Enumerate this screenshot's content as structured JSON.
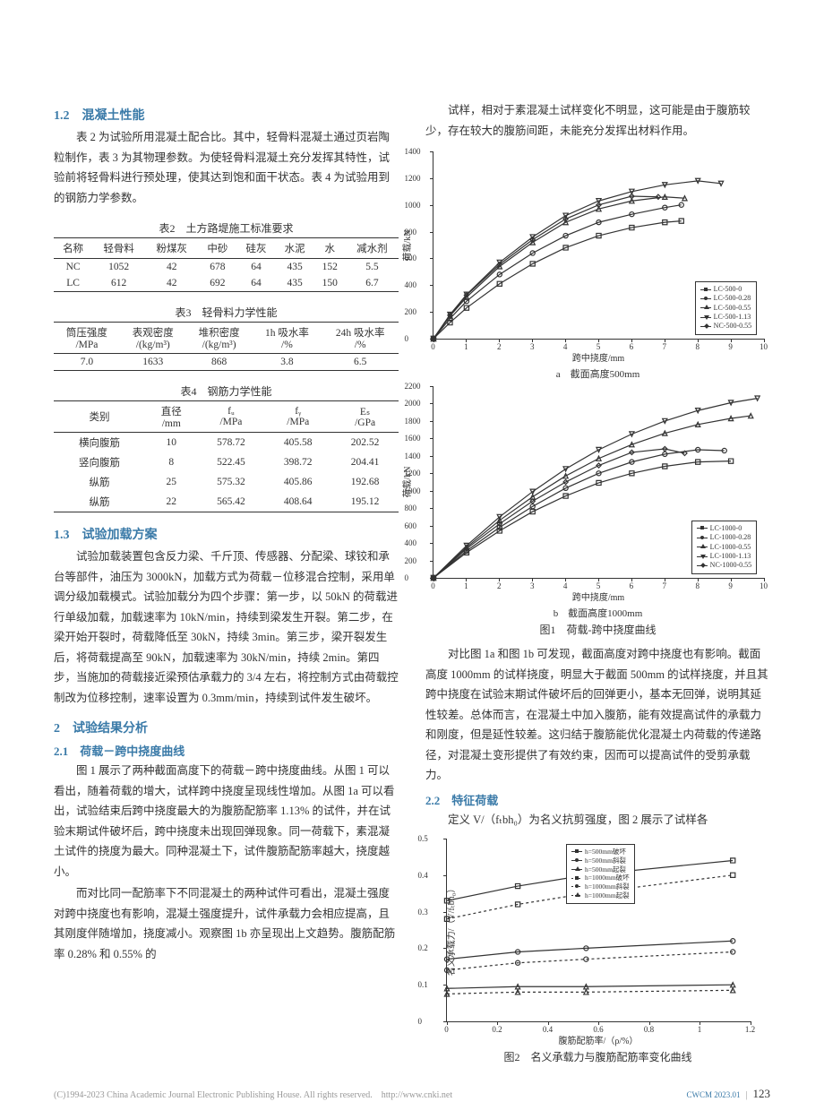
{
  "left": {
    "sec12_title": "1.2　混凝土性能",
    "p1": "表 2 为试验所用混凝土配合比。其中，轻骨料混凝土通过页岩陶粒制作，表 3 为其物理参数。为使轻骨料混凝土充分发挥其特性，试验前将轻骨料进行预处理，使其达到饱和面干状态。表 4 为试验用到的钢筋力学参数。",
    "t2_title": "表2　土方路堤施工标准要求",
    "t2_headers": [
      "名称",
      "轻骨料",
      "粉煤灰",
      "中砂",
      "硅灰",
      "水泥",
      "水",
      "减水剂"
    ],
    "t2_rows": [
      [
        "NC",
        "1052",
        "42",
        "678",
        "64",
        "435",
        "152",
        "5.5"
      ],
      [
        "LC",
        "612",
        "42",
        "692",
        "64",
        "435",
        "150",
        "6.7"
      ]
    ],
    "t3_title": "表3　轻骨料力学性能",
    "t3_headers": [
      "筒压强度\n/MPa",
      "表观密度\n/(kg/m³)",
      "堆积密度\n/(kg/m³)",
      "1h 吸水率\n/%",
      "24h 吸水率\n/%"
    ],
    "t3_rows": [
      [
        "7.0",
        "1633",
        "868",
        "3.8",
        "6.5"
      ]
    ],
    "t4_title": "表4　钢筋力学性能",
    "t4_headers": [
      "类别",
      "直径\n/mm",
      "fᵤ\n/MPa",
      "fᵧ\n/MPa",
      "Eₛ\n/GPa"
    ],
    "t4_rows": [
      [
        "横向腹筋",
        "10",
        "578.72",
        "405.58",
        "202.52"
      ],
      [
        "竖向腹筋",
        "8",
        "522.45",
        "398.72",
        "204.41"
      ],
      [
        "纵筋",
        "25",
        "575.32",
        "405.86",
        "192.68"
      ],
      [
        "纵筋",
        "22",
        "565.42",
        "408.64",
        "195.12"
      ]
    ],
    "sec13_title": "1.3　试验加载方案",
    "p2": "试验加载装置包含反力梁、千斤顶、传感器、分配梁、球铰和承台等部件，油压为 3000kN，加载方式为荷载－位移混合控制，采用单调分级加载模式。试验加载分为四个步骤：第一步，以 50kN 的荷载进行单级加载，加载速率为 10kN/min，持续到梁发生开裂。第二步，在梁开始开裂时，荷载降低至 30kN，持续 3min。第三步，梁开裂发生后，将荷载提高至 90kN，加载速率为 30kN/min，持续 2min。第四步，当施加的荷载接近梁预估承载力的 3/4 左右，将控制方式由荷载控制改为位移控制，速率设置为 0.3mm/min，持续到试件发生破坏。",
    "sec2_title": "2　试验结果分析",
    "sec21_title": "2.1　荷载－跨中挠度曲线",
    "p3": "图 1 展示了两种截面高度下的荷载－跨中挠度曲线。从图 1 可以看出，随着荷载的增大，试样跨中挠度呈现线性增加。从图 1a 可以看出，试验结束后跨中挠度最大的为腹筋配筋率 1.13% 的试件，并在试验末期试件破坏后，跨中挠度未出现回弹现象。同一荷载下，素混凝土试件的挠度为最大。同种混凝土下，试件腹筋配筋率越大，挠度越小。",
    "p4": "而对比同一配筋率下不同混凝土的两种试件可看出，混凝土强度对跨中挠度也有影响，混凝土强度提升，试件承载力会相应提高，且其刚度伴随增加，挠度减小。观察图 1b 亦呈现出上文趋势。腹筋配筋率 0.28% 和 0.55% 的"
  },
  "right": {
    "p1": "试样，相对于素混凝土试样变化不明显，这可能是由于腹筋较少，存在较大的腹筋间距，未能充分发挥出材料作用。",
    "fig1_sub_a": "a　截面高度500mm",
    "fig1_sub_b": "b　截面高度1000mm",
    "fig1_title": "图1　荷载-跨中挠度曲线",
    "chart_a": {
      "xlabel": "跨中挠度/mm",
      "ylabel": "荷载/kN",
      "xlim": [
        0,
        10
      ],
      "ylim": [
        0,
        1400
      ],
      "xticks": [
        0,
        1,
        2,
        3,
        4,
        5,
        6,
        7,
        8,
        9,
        10
      ],
      "yticks": [
        0,
        200,
        400,
        600,
        800,
        1000,
        1200,
        1400
      ],
      "legend": [
        "LC-500-0",
        "LC-500-0.28",
        "LC-500-0.55",
        "LC-500-1.13",
        "NC-500-0.55"
      ],
      "markers": [
        "sq",
        "ci",
        "tr",
        "td",
        "di"
      ],
      "series": [
        [
          [
            0,
            0
          ],
          [
            0.5,
            120
          ],
          [
            1,
            230
          ],
          [
            2,
            410
          ],
          [
            3,
            560
          ],
          [
            4,
            680
          ],
          [
            5,
            770
          ],
          [
            6,
            830
          ],
          [
            7,
            870
          ],
          [
            7.5,
            880
          ]
        ],
        [
          [
            0,
            0
          ],
          [
            0.5,
            150
          ],
          [
            1,
            280
          ],
          [
            2,
            480
          ],
          [
            3,
            640
          ],
          [
            4,
            770
          ],
          [
            5,
            870
          ],
          [
            6,
            930
          ],
          [
            7,
            980
          ],
          [
            7.5,
            1000
          ]
        ],
        [
          [
            0,
            0
          ],
          [
            0.5,
            170
          ],
          [
            1,
            310
          ],
          [
            2,
            540
          ],
          [
            3,
            720
          ],
          [
            4,
            870
          ],
          [
            5,
            970
          ],
          [
            6,
            1030
          ],
          [
            7,
            1060
          ],
          [
            7.6,
            1050
          ]
        ],
        [
          [
            0,
            0
          ],
          [
            0.5,
            180
          ],
          [
            1,
            330
          ],
          [
            2,
            570
          ],
          [
            3,
            760
          ],
          [
            4,
            920
          ],
          [
            5,
            1030
          ],
          [
            6,
            1100
          ],
          [
            7,
            1150
          ],
          [
            8,
            1180
          ],
          [
            8.7,
            1160
          ]
        ],
        [
          [
            0,
            0
          ],
          [
            0.5,
            175
          ],
          [
            1,
            325
          ],
          [
            2,
            555
          ],
          [
            3,
            740
          ],
          [
            4,
            895
          ],
          [
            5,
            1000
          ],
          [
            6,
            1065
          ],
          [
            6.8,
            1060
          ]
        ]
      ]
    },
    "chart_b": {
      "xlabel": "跨中挠度/mm",
      "ylabel": "荷载/kN",
      "xlim": [
        0,
        10
      ],
      "ylim": [
        0,
        2200
      ],
      "xticks": [
        0,
        1,
        2,
        3,
        4,
        5,
        6,
        7,
        8,
        9,
        10
      ],
      "yticks": [
        0,
        200,
        400,
        600,
        800,
        1000,
        1200,
        1400,
        1600,
        1800,
        2000,
        2200
      ],
      "legend": [
        "LC-1000-0",
        "LC-1000-0.28",
        "LC-1000-0.55",
        "LC-1000-1.13",
        "NC-1000-0.55"
      ],
      "markers": [
        "sq",
        "ci",
        "tr",
        "td",
        "di"
      ],
      "series": [
        [
          [
            0,
            0
          ],
          [
            1,
            290
          ],
          [
            2,
            540
          ],
          [
            3,
            760
          ],
          [
            4,
            940
          ],
          [
            5,
            1090
          ],
          [
            6,
            1200
          ],
          [
            7,
            1280
          ],
          [
            8,
            1330
          ],
          [
            9,
            1340
          ]
        ],
        [
          [
            0,
            0
          ],
          [
            1,
            310
          ],
          [
            2,
            580
          ],
          [
            3,
            820
          ],
          [
            4,
            1030
          ],
          [
            5,
            1200
          ],
          [
            6,
            1330
          ],
          [
            7,
            1420
          ],
          [
            8,
            1470
          ],
          [
            8.8,
            1460
          ]
        ],
        [
          [
            0,
            0
          ],
          [
            1,
            350
          ],
          [
            2,
            660
          ],
          [
            3,
            930
          ],
          [
            4,
            1170
          ],
          [
            5,
            1370
          ],
          [
            6,
            1530
          ],
          [
            7,
            1660
          ],
          [
            8,
            1760
          ],
          [
            9,
            1830
          ],
          [
            9.6,
            1860
          ]
        ],
        [
          [
            0,
            0
          ],
          [
            1,
            370
          ],
          [
            2,
            700
          ],
          [
            3,
            990
          ],
          [
            4,
            1250
          ],
          [
            5,
            1470
          ],
          [
            6,
            1650
          ],
          [
            7,
            1800
          ],
          [
            8,
            1920
          ],
          [
            9,
            2010
          ],
          [
            9.8,
            2060
          ]
        ],
        [
          [
            0,
            0
          ],
          [
            1,
            335
          ],
          [
            2,
            620
          ],
          [
            3,
            880
          ],
          [
            4,
            1100
          ],
          [
            5,
            1290
          ],
          [
            6,
            1440
          ],
          [
            7,
            1480
          ],
          [
            7.6,
            1430
          ]
        ]
      ]
    },
    "p2": "对比图 1a 和图 1b 可发现，截面高度对跨中挠度也有影响。截面高度 1000mm 的试样挠度，明显大于截面 500mm 的试样挠度，并且其跨中挠度在试验末期试件破坏后的回弹更小，基本无回弹，说明其延性较差。总体而言，在混凝土中加入腹筋，能有效提高试件的承载力和刚度，但是延性较差。这归结于腹筋能优化混凝土内荷载的传递路径，对混凝土变形提供了有效约束，因而可以提高试件的受剪承载力。",
    "sec22_title": "2.2　特征荷载",
    "p3": "定义 V/（fₜbh₀）为名义抗剪强度，图 2 展示了试样各",
    "chart_c": {
      "xlabel": "腹筋配筋率/（ρ/%）",
      "ylabel": "名义承载力/（V/fₜbh₀）",
      "xlim": [
        0,
        1.2
      ],
      "ylim": [
        0,
        0.5
      ],
      "xticks": [
        0.0,
        0.2,
        0.4,
        0.6,
        0.8,
        1.0,
        1.2
      ],
      "yticks": [
        0,
        0.1,
        0.2,
        0.3,
        0.4,
        0.5
      ],
      "legend": [
        "h=500mm破坏",
        "h=500mm斜裂",
        "h=500mm起裂",
        "h=1000mm破坏",
        "h=1000mm斜裂",
        "h=1000mm起裂"
      ],
      "markers": [
        "sq",
        "ci",
        "tr",
        "sq",
        "ci",
        "tr"
      ],
      "dash": [
        false,
        false,
        false,
        true,
        true,
        true
      ],
      "series": [
        [
          [
            0,
            0.33
          ],
          [
            0.28,
            0.37
          ],
          [
            0.55,
            0.4
          ],
          [
            1.13,
            0.44
          ]
        ],
        [
          [
            0,
            0.17
          ],
          [
            0.28,
            0.19
          ],
          [
            0.55,
            0.2
          ],
          [
            1.13,
            0.22
          ]
        ],
        [
          [
            0,
            0.09
          ],
          [
            0.28,
            0.095
          ],
          [
            0.55,
            0.095
          ],
          [
            1.13,
            0.1
          ]
        ],
        [
          [
            0,
            0.28
          ],
          [
            0.28,
            0.32
          ],
          [
            0.55,
            0.35
          ],
          [
            1.13,
            0.4
          ]
        ],
        [
          [
            0,
            0.14
          ],
          [
            0.28,
            0.16
          ],
          [
            0.55,
            0.17
          ],
          [
            1.13,
            0.19
          ]
        ],
        [
          [
            0,
            0.075
          ],
          [
            0.28,
            0.08
          ],
          [
            0.55,
            0.08
          ],
          [
            1.13,
            0.085
          ]
        ]
      ]
    },
    "fig2_title": "图2　名义承载力与腹筋配筋率变化曲线"
  },
  "footer": {
    "copyright": "(C)1994-2023 China Academic Journal Electronic Publishing House. All rights reserved.　http://www.cnki.net",
    "tag": "CWCM 2023.01",
    "page": "123"
  },
  "colors": {
    "heading": "#3a7aa8",
    "text": "#333333",
    "rule": "#333333"
  }
}
